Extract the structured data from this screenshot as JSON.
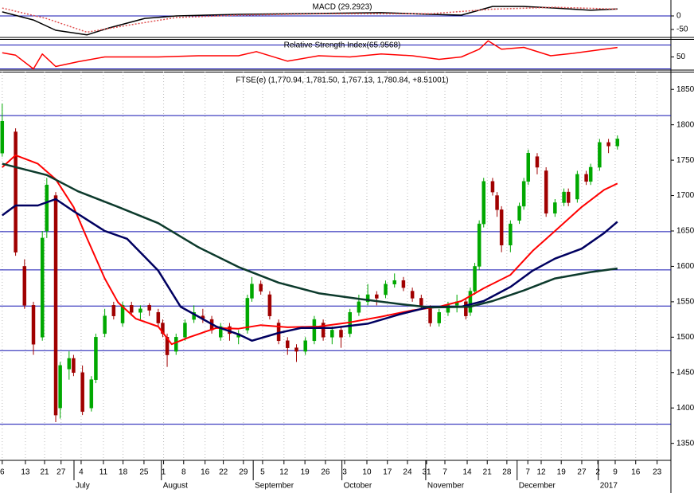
{
  "chart_data": [
    {
      "type": "line",
      "title": "MACD (29.2923)",
      "xlim": [
        -0.5,
        150
      ],
      "ylim": [
        -73.5,
        50
      ],
      "yticks": [
        0,
        -50
      ],
      "hlines": [
        0
      ],
      "hline_color": "#1010b0",
      "series": [
        {
          "color": "#000000",
          "x": [
            0,
            7,
            12,
            19,
            24,
            32,
            39,
            53,
            71,
            85,
            96,
            103,
            110,
            117,
            124,
            132,
            138
          ],
          "values": [
            15,
            -15,
            -53,
            -70,
            -44,
            -9,
            0,
            6,
            9,
            12,
            6,
            3,
            35,
            35,
            29,
            21,
            26
          ]
        },
        {
          "color": "#e05050",
          "dashed": true,
          "x": [
            0,
            10,
            19,
            28,
            39,
            53,
            71,
            96,
            110,
            124,
            138
          ],
          "values": [
            29,
            -10,
            -60,
            -35,
            -6,
            3,
            8,
            8,
            25,
            32,
            25
          ]
        }
      ]
    },
    {
      "type": "line",
      "title": "Relative Strength Index(65.9568)",
      "xlim": [
        -0.5,
        150
      ],
      "ylim": [
        28,
        80
      ],
      "yticks": [
        50
      ],
      "hlines": [
        70,
        30
      ],
      "hline_color": "#1010b0",
      "series": [
        {
          "color": "#ff0000",
          "x": [
            0,
            3,
            7,
            9,
            12,
            17,
            23,
            35,
            44,
            53,
            57,
            64,
            71,
            78,
            85,
            92,
            98,
            103,
            107,
            109,
            112,
            117,
            123,
            128,
            135,
            138
          ],
          "values": [
            57,
            53,
            30,
            55,
            34,
            42,
            50,
            50,
            52,
            52,
            59,
            43,
            52,
            50,
            55,
            52,
            46,
            50,
            63,
            77,
            63,
            66,
            52,
            56,
            63,
            65.9
          ]
        }
      ]
    },
    {
      "type": "candlestick",
      "title": "FTSE(e) (1,770.94, 1,781.50, 1,767.13, 1,780.84, +8.51001)",
      "xlim": [
        -0.5,
        150
      ],
      "ylim": [
        1326,
        1875
      ],
      "yticks": [
        1350,
        1400,
        1450,
        1500,
        1550,
        1600,
        1650,
        1700,
        1750,
        1800,
        1850
      ],
      "up_color": "#00a800",
      "down_color": "#a00000",
      "grid": true,
      "hlines": [
        1813,
        1649,
        1595,
        1544,
        1481,
        1377
      ],
      "hline_color": "#1010b0",
      "xticks": [
        {
          "value": 0,
          "label": "6"
        },
        {
          "value": 5.2,
          "label": "13"
        },
        {
          "value": 9.5,
          "label": "21"
        },
        {
          "value": 13.2,
          "label": "27"
        },
        {
          "value": 17.7,
          "label": "4"
        },
        {
          "value": 22.7,
          "label": "11"
        },
        {
          "value": 27.1,
          "label": "18"
        },
        {
          "value": 31.8,
          "label": "25"
        },
        {
          "value": 36.2,
          "label": "1"
        },
        {
          "value": 40.7,
          "label": "8"
        },
        {
          "value": 45.5,
          "label": "16"
        },
        {
          "value": 49.6,
          "label": "22"
        },
        {
          "value": 54.1,
          "label": "29"
        },
        {
          "value": 58.4,
          "label": "5"
        },
        {
          "value": 63.2,
          "label": "12"
        },
        {
          "value": 67.9,
          "label": "19"
        },
        {
          "value": 72.5,
          "label": "26"
        },
        {
          "value": 76.8,
          "label": "3"
        },
        {
          "value": 81.8,
          "label": "10"
        },
        {
          "value": 86.4,
          "label": "17"
        },
        {
          "value": 90.9,
          "label": "24"
        },
        {
          "value": 95.2,
          "label": "31"
        },
        {
          "value": 99.3,
          "label": "7"
        },
        {
          "value": 104.3,
          "label": "14"
        },
        {
          "value": 108.8,
          "label": "21"
        },
        {
          "value": 113.2,
          "label": "28"
        },
        {
          "value": 117.9,
          "label": "7"
        },
        {
          "value": 120.9,
          "label": "12"
        },
        {
          "value": 125.4,
          "label": "19"
        },
        {
          "value": 130,
          "label": "27"
        },
        {
          "value": 133.6,
          "label": "2"
        },
        {
          "value": 137.5,
          "label": "9"
        },
        {
          "value": 142.1,
          "label": "16"
        },
        {
          "value": 146.9,
          "label": "23"
        }
      ],
      "month_ticks": [
        {
          "value": 16.1,
          "label": "July"
        },
        {
          "value": 35.7,
          "label": "August"
        },
        {
          "value": 56.3,
          "label": "September"
        },
        {
          "value": 76.2,
          "label": "October"
        },
        {
          "value": 95,
          "label": "November"
        },
        {
          "value": 115.5,
          "label": "December"
        },
        {
          "value": 133.7,
          "label": "2017"
        }
      ],
      "x": [
        0,
        3,
        5,
        7,
        9,
        10,
        12,
        13,
        15,
        16,
        18,
        20,
        21,
        23,
        25,
        27,
        29,
        31,
        33,
        35,
        36,
        37,
        39,
        41,
        43,
        45,
        47,
        49,
        51,
        53,
        55,
        56,
        58,
        60,
        62,
        64,
        66,
        68,
        70,
        72,
        74,
        76,
        78,
        80,
        82,
        84,
        86,
        88,
        90,
        92,
        94,
        96,
        98,
        100,
        102,
        104,
        105,
        106,
        107,
        108,
        110,
        111,
        112,
        114,
        116,
        117,
        118,
        120,
        122,
        124,
        126,
        127,
        129,
        131,
        132,
        134,
        136,
        138
      ],
      "open": [
        1760,
        1790,
        1600,
        1545,
        1500,
        1650,
        1700,
        1400,
        1455,
        1470,
        1450,
        1400,
        1440,
        1505,
        1545,
        1520,
        1545,
        1535,
        1545,
        1535,
        1520,
        1500,
        1480,
        1500,
        1525,
        1530,
        1525,
        1500,
        1515,
        1500,
        1510,
        1555,
        1575,
        1560,
        1520,
        1495,
        1485,
        1480,
        1495,
        1520,
        1500,
        1510,
        1505,
        1535,
        1550,
        1560,
        1560,
        1575,
        1580,
        1565,
        1555,
        1540,
        1520,
        1535,
        1545,
        1550,
        1535,
        1565,
        1600,
        1660,
        1720,
        1700,
        1680,
        1630,
        1665,
        1685,
        1720,
        1755,
        1735,
        1675,
        1690,
        1705,
        1695,
        1730,
        1720,
        1740,
        1775,
        1770
      ],
      "high": [
        1830,
        1795,
        1610,
        1550,
        1650,
        1725,
        1705,
        1465,
        1480,
        1475,
        1460,
        1445,
        1505,
        1540,
        1550,
        1550,
        1550,
        1545,
        1548,
        1540,
        1525,
        1505,
        1505,
        1525,
        1545,
        1540,
        1530,
        1520,
        1520,
        1510,
        1560,
        1585,
        1580,
        1565,
        1525,
        1500,
        1490,
        1500,
        1530,
        1525,
        1515,
        1515,
        1540,
        1560,
        1575,
        1565,
        1580,
        1590,
        1585,
        1570,
        1560,
        1545,
        1540,
        1550,
        1560,
        1555,
        1570,
        1605,
        1665,
        1725,
        1725,
        1705,
        1685,
        1665,
        1690,
        1725,
        1765,
        1760,
        1740,
        1695,
        1710,
        1710,
        1735,
        1735,
        1745,
        1780,
        1780,
        1785
      ],
      "low": [
        1755,
        1615,
        1540,
        1475,
        1495,
        1640,
        1380,
        1385,
        1440,
        1445,
        1390,
        1395,
        1435,
        1500,
        1525,
        1515,
        1530,
        1525,
        1530,
        1515,
        1500,
        1458,
        1475,
        1495,
        1520,
        1520,
        1505,
        1495,
        1495,
        1490,
        1505,
        1550,
        1560,
        1525,
        1490,
        1475,
        1465,
        1475,
        1490,
        1495,
        1490,
        1485,
        1500,
        1530,
        1545,
        1545,
        1555,
        1570,
        1565,
        1550,
        1540,
        1515,
        1515,
        1530,
        1535,
        1525,
        1530,
        1560,
        1595,
        1655,
        1700,
        1670,
        1620,
        1620,
        1660,
        1680,
        1715,
        1730,
        1670,
        1670,
        1685,
        1685,
        1690,
        1715,
        1715,
        1735,
        1760,
        1765
      ],
      "close": [
        1805,
        1620,
        1545,
        1490,
        1640,
        1715,
        1390,
        1460,
        1470,
        1450,
        1395,
        1440,
        1500,
        1530,
        1530,
        1545,
        1535,
        1540,
        1538,
        1520,
        1505,
        1475,
        1500,
        1520,
        1535,
        1525,
        1510,
        1515,
        1505,
        1505,
        1555,
        1575,
        1565,
        1530,
        1495,
        1485,
        1480,
        1495,
        1525,
        1500,
        1510,
        1500,
        1535,
        1550,
        1560,
        1555,
        1575,
        1580,
        1570,
        1555,
        1545,
        1520,
        1535,
        1545,
        1550,
        1530,
        1565,
        1600,
        1660,
        1720,
        1705,
        1680,
        1630,
        1660,
        1685,
        1720,
        1760,
        1740,
        1675,
        1690,
        1705,
        1690,
        1730,
        1720,
        1740,
        1775,
        1770,
        1780
      ],
      "overlays": [
        {
          "color": "#ff0000",
          "width": 2,
          "x": [
            0,
            3,
            8,
            12,
            16,
            19,
            23,
            26,
            30,
            35,
            38,
            42,
            48,
            53,
            58,
            64,
            71,
            78,
            85,
            92,
            98,
            103,
            108,
            114,
            119,
            124,
            130,
            135,
            138
          ],
          "values": [
            1740,
            1757,
            1745,
            1723,
            1684,
            1640,
            1583,
            1549,
            1526,
            1515,
            1490,
            1500,
            1513,
            1512,
            1517,
            1514,
            1515,
            1521,
            1529,
            1538,
            1543,
            1551,
            1569,
            1588,
            1622,
            1650,
            1684,
            1708,
            1717
          ]
        },
        {
          "color": "#000060",
          "width": 2.5,
          "x": [
            0,
            3,
            8,
            12,
            16,
            23,
            28,
            35,
            40,
            48,
            53,
            56,
            62,
            67,
            74,
            82,
            89,
            96,
            103,
            108,
            114,
            119,
            124,
            130,
            135,
            138
          ],
          "values": [
            1672,
            1686,
            1686,
            1695,
            1678,
            1650,
            1639,
            1594,
            1543,
            1515,
            1504,
            1495,
            1506,
            1513,
            1513,
            1519,
            1532,
            1543,
            1543,
            1551,
            1571,
            1594,
            1611,
            1625,
            1647,
            1663
          ]
        },
        {
          "color": "#0c3a2c",
          "width": 2.5,
          "x": [
            0,
            10,
            17,
            26,
            35,
            44,
            53,
            62,
            71,
            80,
            89,
            96,
            105,
            110,
            117,
            124,
            132,
            138
          ],
          "values": [
            1745,
            1729,
            1706,
            1684,
            1661,
            1627,
            1599,
            1577,
            1562,
            1554,
            1547,
            1542,
            1543,
            1551,
            1566,
            1583,
            1592,
            1597
          ]
        }
      ]
    }
  ]
}
